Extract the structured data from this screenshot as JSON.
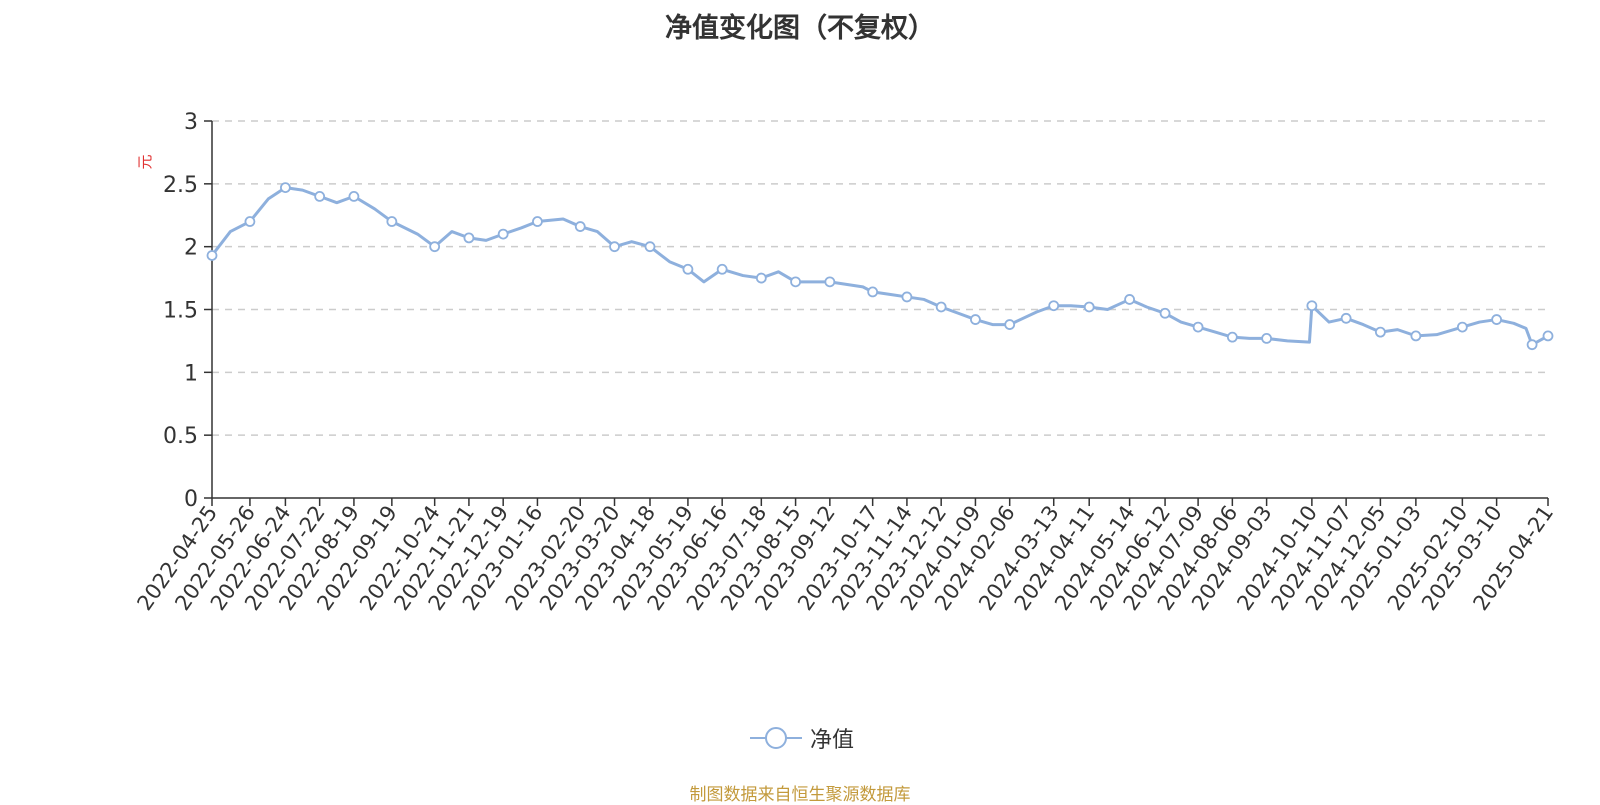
{
  "chart_data": {
    "type": "line",
    "title": "净值变化图（不复权）",
    "ylabel": "元",
    "ylim": [
      0,
      3
    ],
    "yticks": [
      "0",
      "0.5",
      "1",
      "1.5",
      "2",
      "2.5",
      "3"
    ],
    "grid": true,
    "legend_position": "bottom",
    "line_color": "#8eb0dd",
    "unit_color": "#e03030",
    "x_ticks": [
      "2022-04-25",
      "2022-05-26",
      "2022-06-24",
      "2022-07-22",
      "2022-08-19",
      "2022-09-19",
      "2022-10-24",
      "2022-11-21",
      "2022-12-19",
      "2023-01-16",
      "2023-02-20",
      "2023-03-20",
      "2023-04-18",
      "2023-05-19",
      "2023-06-16",
      "2023-07-18",
      "2023-08-15",
      "2023-09-12",
      "2023-10-17",
      "2023-11-14",
      "2023-12-12",
      "2024-01-09",
      "2024-02-06",
      "2024-03-13",
      "2024-04-11",
      "2024-05-14",
      "2024-06-12",
      "2024-07-09",
      "2024-08-06",
      "2024-09-03",
      "2024-10-10",
      "2024-11-07",
      "2024-12-05",
      "2025-01-03",
      "2025-02-10",
      "2025-03-10",
      "2025-04-21"
    ],
    "series": [
      {
        "name": "净值",
        "x": [
          "2022-04-25",
          "2022-05-10",
          "2022-05-26",
          "2022-06-10",
          "2022-06-24",
          "2022-07-08",
          "2022-07-22",
          "2022-08-05",
          "2022-08-19",
          "2022-09-05",
          "2022-09-19",
          "2022-10-10",
          "2022-10-24",
          "2022-11-07",
          "2022-11-21",
          "2022-12-05",
          "2022-12-19",
          "2023-01-03",
          "2023-01-16",
          "2023-02-06",
          "2023-02-20",
          "2023-03-06",
          "2023-03-20",
          "2023-04-03",
          "2023-04-18",
          "2023-05-04",
          "2023-05-19",
          "2023-06-01",
          "2023-06-16",
          "2023-07-03",
          "2023-07-18",
          "2023-08-01",
          "2023-08-15",
          "2023-08-29",
          "2023-09-12",
          "2023-10-09",
          "2023-10-17",
          "2023-10-31",
          "2023-11-14",
          "2023-11-28",
          "2023-12-12",
          "2023-12-26",
          "2024-01-09",
          "2024-01-23",
          "2024-02-06",
          "2024-02-28",
          "2024-03-13",
          "2024-03-27",
          "2024-04-11",
          "2024-04-26",
          "2024-05-14",
          "2024-05-28",
          "2024-06-12",
          "2024-06-25",
          "2024-07-09",
          "2024-07-23",
          "2024-08-06",
          "2024-08-20",
          "2024-09-03",
          "2024-09-20",
          "2024-10-08",
          "2024-10-10",
          "2024-10-24",
          "2024-11-07",
          "2024-11-21",
          "2024-12-05",
          "2024-12-19",
          "2025-01-03",
          "2025-01-20",
          "2025-02-10",
          "2025-02-24",
          "2025-03-10",
          "2025-03-24",
          "2025-04-03",
          "2025-04-08",
          "2025-04-21"
        ],
        "y": [
          1.93,
          2.12,
          2.2,
          2.38,
          2.47,
          2.45,
          2.4,
          2.35,
          2.4,
          2.3,
          2.2,
          2.1,
          2.0,
          2.12,
          2.07,
          2.05,
          2.1,
          2.15,
          2.2,
          2.22,
          2.16,
          2.12,
          2.0,
          2.04,
          2.0,
          1.88,
          1.82,
          1.72,
          1.82,
          1.77,
          1.75,
          1.8,
          1.72,
          1.72,
          1.72,
          1.68,
          1.64,
          1.62,
          1.6,
          1.58,
          1.52,
          1.47,
          1.42,
          1.38,
          1.38,
          1.48,
          1.53,
          1.53,
          1.52,
          1.5,
          1.58,
          1.52,
          1.47,
          1.4,
          1.36,
          1.32,
          1.28,
          1.27,
          1.27,
          1.25,
          1.24,
          1.53,
          1.4,
          1.43,
          1.38,
          1.32,
          1.34,
          1.29,
          1.3,
          1.36,
          1.4,
          1.42,
          1.39,
          1.35,
          1.22,
          1.29
        ],
        "marker_dates": [
          "2022-04-25",
          "2022-05-26",
          "2022-06-24",
          "2022-07-22",
          "2022-08-19",
          "2022-09-19",
          "2022-10-24",
          "2022-11-21",
          "2022-12-19",
          "2023-01-16",
          "2023-02-20",
          "2023-03-20",
          "2023-04-18",
          "2023-05-19",
          "2023-06-16",
          "2023-07-18",
          "2023-08-15",
          "2023-09-12",
          "2023-10-17",
          "2023-11-14",
          "2023-12-12",
          "2024-01-09",
          "2024-02-06",
          "2024-03-13",
          "2024-04-11",
          "2024-05-14",
          "2024-06-12",
          "2024-07-09",
          "2024-08-06",
          "2024-09-03",
          "2024-10-10",
          "2024-11-07",
          "2024-12-05",
          "2025-01-03",
          "2025-02-10",
          "2025-03-10",
          "2025-04-08",
          "2025-04-21"
        ]
      }
    ]
  },
  "legend": {
    "label": "净值"
  },
  "footer": {
    "source": "制图数据来自恒生聚源数据库"
  }
}
